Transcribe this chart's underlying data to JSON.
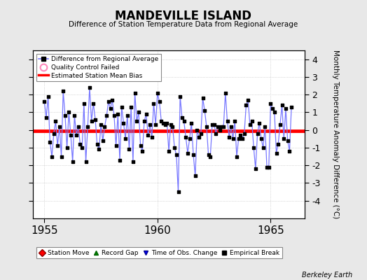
{
  "title": "MANDEVILLE ISLAND",
  "subtitle": "Difference of Station Temperature Data from Regional Average",
  "ylabel_right": "Monthly Temperature Anomaly Difference (°C)",
  "xlim": [
    1954.5,
    1966.5
  ],
  "ylim": [
    -5,
    4.5
  ],
  "yticks": [
    -4,
    -3,
    -2,
    -1,
    0,
    1,
    2,
    3,
    4
  ],
  "xticks": [
    1955,
    1960,
    1965
  ],
  "bias_line": -0.05,
  "background_color": "#e8e8e8",
  "plot_bg_color": "#ffffff",
  "line_color": "#7777ff",
  "bias_color": "#ff0000",
  "marker_color": "#000000",
  "watermark": "Berkeley Earth",
  "data": [
    [
      1955.0,
      1.6
    ],
    [
      1955.083,
      0.7
    ],
    [
      1955.167,
      1.9
    ],
    [
      1955.25,
      -0.7
    ],
    [
      1955.333,
      -1.5
    ],
    [
      1955.417,
      -0.2
    ],
    [
      1955.5,
      0.5
    ],
    [
      1955.583,
      -0.9
    ],
    [
      1955.667,
      0.2
    ],
    [
      1955.75,
      -1.5
    ],
    [
      1955.833,
      2.2
    ],
    [
      1955.917,
      0.8
    ],
    [
      1956.0,
      -1.0
    ],
    [
      1956.083,
      1.0
    ],
    [
      1956.167,
      -0.3
    ],
    [
      1956.25,
      -1.8
    ],
    [
      1956.333,
      0.8
    ],
    [
      1956.417,
      -0.3
    ],
    [
      1956.5,
      0.2
    ],
    [
      1956.583,
      -0.8
    ],
    [
      1956.667,
      -1.0
    ],
    [
      1956.75,
      1.5
    ],
    [
      1956.833,
      -1.8
    ],
    [
      1956.917,
      0.2
    ],
    [
      1957.0,
      2.4
    ],
    [
      1957.083,
      0.5
    ],
    [
      1957.167,
      1.5
    ],
    [
      1957.25,
      0.6
    ],
    [
      1957.333,
      -0.8
    ],
    [
      1957.417,
      -1.1
    ],
    [
      1957.5,
      0.3
    ],
    [
      1957.583,
      -0.6
    ],
    [
      1957.667,
      0.2
    ],
    [
      1957.75,
      0.8
    ],
    [
      1957.833,
      1.6
    ],
    [
      1957.917,
      1.2
    ],
    [
      1958.0,
      1.7
    ],
    [
      1958.083,
      0.8
    ],
    [
      1958.167,
      -0.9
    ],
    [
      1958.25,
      0.9
    ],
    [
      1958.333,
      -1.7
    ],
    [
      1958.417,
      1.3
    ],
    [
      1958.5,
      0.4
    ],
    [
      1958.583,
      -0.5
    ],
    [
      1958.667,
      0.8
    ],
    [
      1958.75,
      -1.1
    ],
    [
      1958.833,
      1.3
    ],
    [
      1958.917,
      -1.8
    ],
    [
      1959.0,
      2.1
    ],
    [
      1959.083,
      0.5
    ],
    [
      1959.167,
      1.0
    ],
    [
      1959.25,
      -0.9
    ],
    [
      1959.333,
      -1.2
    ],
    [
      1959.417,
      0.5
    ],
    [
      1959.5,
      0.9
    ],
    [
      1959.583,
      -0.3
    ],
    [
      1959.667,
      0.3
    ],
    [
      1959.75,
      -0.4
    ],
    [
      1959.833,
      1.5
    ],
    [
      1959.917,
      0.3
    ],
    [
      1960.0,
      2.1
    ],
    [
      1960.083,
      1.6
    ],
    [
      1960.167,
      0.5
    ],
    [
      1960.25,
      0.4
    ],
    [
      1960.333,
      0.3
    ],
    [
      1960.417,
      0.4
    ],
    [
      1960.5,
      -1.2
    ],
    [
      1960.583,
      0.3
    ],
    [
      1960.667,
      0.2
    ],
    [
      1960.75,
      -1.0
    ],
    [
      1960.833,
      -1.4
    ],
    [
      1960.917,
      -3.5
    ],
    [
      1961.0,
      1.9
    ],
    [
      1961.083,
      0.7
    ],
    [
      1961.167,
      0.5
    ],
    [
      1961.25,
      -0.4
    ],
    [
      1961.333,
      -1.3
    ],
    [
      1961.417,
      -0.5
    ],
    [
      1961.5,
      0.4
    ],
    [
      1961.583,
      -1.4
    ],
    [
      1961.667,
      -2.6
    ],
    [
      1961.75,
      0.0
    ],
    [
      1961.833,
      -0.4
    ],
    [
      1961.917,
      -0.2
    ],
    [
      1962.0,
      1.8
    ],
    [
      1962.083,
      1.1
    ],
    [
      1962.167,
      0.2
    ],
    [
      1962.25,
      -1.4
    ],
    [
      1962.333,
      -1.5
    ],
    [
      1962.417,
      0.3
    ],
    [
      1962.5,
      0.3
    ],
    [
      1962.583,
      -0.2
    ],
    [
      1962.667,
      0.2
    ],
    [
      1962.75,
      0.0
    ],
    [
      1962.833,
      0.2
    ],
    [
      1962.917,
      0.2
    ],
    [
      1963.0,
      2.1
    ],
    [
      1963.083,
      0.5
    ],
    [
      1963.167,
      -0.4
    ],
    [
      1963.25,
      0.2
    ],
    [
      1963.333,
      -0.5
    ],
    [
      1963.417,
      0.5
    ],
    [
      1963.5,
      -1.5
    ],
    [
      1963.583,
      -0.5
    ],
    [
      1963.667,
      -0.3
    ],
    [
      1963.75,
      -0.5
    ],
    [
      1963.833,
      -0.2
    ],
    [
      1963.917,
      1.4
    ],
    [
      1964.0,
      1.7
    ],
    [
      1964.083,
      0.3
    ],
    [
      1964.167,
      0.5
    ],
    [
      1964.25,
      -1.0
    ],
    [
      1964.333,
      -2.2
    ],
    [
      1964.417,
      -0.2
    ],
    [
      1964.5,
      0.4
    ],
    [
      1964.583,
      -0.5
    ],
    [
      1964.667,
      -1.0
    ],
    [
      1964.75,
      0.2
    ],
    [
      1964.833,
      -2.1
    ],
    [
      1964.917,
      -2.1
    ],
    [
      1965.0,
      1.5
    ],
    [
      1965.083,
      1.2
    ],
    [
      1965.167,
      1.0
    ],
    [
      1965.25,
      -1.3
    ],
    [
      1965.333,
      -0.8
    ],
    [
      1965.417,
      0.3
    ],
    [
      1965.5,
      1.4
    ],
    [
      1965.583,
      -0.5
    ],
    [
      1965.667,
      1.2
    ],
    [
      1965.75,
      -0.6
    ],
    [
      1965.833,
      -1.2
    ],
    [
      1965.917,
      1.3
    ]
  ]
}
